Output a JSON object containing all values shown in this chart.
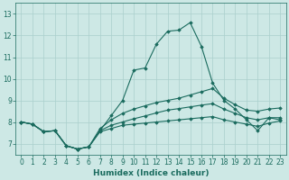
{
  "background_color": "#cde8e5",
  "grid_color": "#aacfcc",
  "line_color": "#1a6b5e",
  "xlabel": "Humidex (Indice chaleur)",
  "xlim": [
    -0.5,
    23.5
  ],
  "ylim": [
    6.5,
    13.5
  ],
  "yticks": [
    7,
    8,
    9,
    10,
    11,
    12,
    13
  ],
  "xticks": [
    0,
    1,
    2,
    3,
    4,
    5,
    6,
    7,
    8,
    9,
    10,
    11,
    12,
    13,
    14,
    15,
    16,
    17,
    18,
    19,
    20,
    21,
    22,
    23
  ],
  "line1_y": [
    8.0,
    7.9,
    7.55,
    7.6,
    6.9,
    6.75,
    6.85,
    7.6,
    8.3,
    9.0,
    10.4,
    10.5,
    11.6,
    12.2,
    12.25,
    12.6,
    11.5,
    9.8,
    9.0,
    8.6,
    8.1,
    7.6,
    8.2,
    8.1
  ],
  "line2_y": [
    8.0,
    7.9,
    7.55,
    7.6,
    6.9,
    6.75,
    6.85,
    7.7,
    8.1,
    8.4,
    8.6,
    8.75,
    8.9,
    9.0,
    9.1,
    9.25,
    9.4,
    9.55,
    9.1,
    8.8,
    8.55,
    8.5,
    8.6,
    8.65
  ],
  "line3_y": [
    8.0,
    7.9,
    7.55,
    7.6,
    6.9,
    6.75,
    6.85,
    7.6,
    7.85,
    8.0,
    8.15,
    8.28,
    8.42,
    8.55,
    8.62,
    8.7,
    8.78,
    8.85,
    8.6,
    8.4,
    8.2,
    8.1,
    8.2,
    8.2
  ],
  "line4_y": [
    8.0,
    7.9,
    7.55,
    7.6,
    6.9,
    6.75,
    6.85,
    7.55,
    7.7,
    7.85,
    7.9,
    7.95,
    8.0,
    8.05,
    8.1,
    8.15,
    8.2,
    8.25,
    8.1,
    8.0,
    7.9,
    7.8,
    7.95,
    8.05
  ],
  "marker": "D",
  "markersize": 1.8,
  "linewidth": 0.8,
  "tick_fontsize": 5.5,
  "xlabel_fontsize": 6.5
}
